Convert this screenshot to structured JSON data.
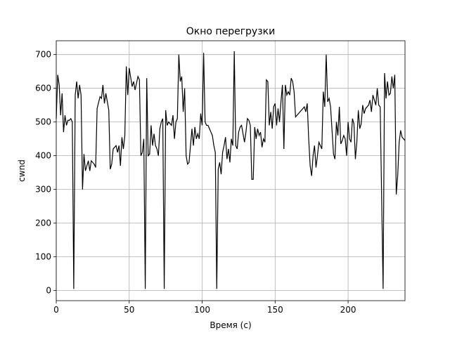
{
  "chart_data": {
    "type": "line",
    "title": "Окно перегрузки",
    "x_label": "Время (с)",
    "y_label": "cwnd",
    "x": [
      0,
      1,
      2,
      3,
      4,
      5,
      6,
      7,
      8,
      9,
      10,
      11,
      12,
      13,
      14,
      15,
      16,
      17,
      18,
      19,
      20,
      22,
      23,
      24,
      26,
      27,
      28,
      30,
      31,
      32,
      33,
      34,
      36,
      37,
      38,
      39,
      41,
      42,
      43,
      44,
      45,
      46,
      47,
      48,
      49,
      50,
      52,
      53,
      54,
      56,
      57,
      58,
      59,
      60,
      61,
      62,
      63,
      64,
      65,
      66,
      67,
      68,
      69,
      70,
      71,
      72,
      73,
      74,
      75,
      76,
      77,
      78,
      79,
      80,
      81,
      82,
      83,
      84,
      85,
      86,
      87,
      88,
      89,
      90,
      91,
      92,
      93,
      94,
      95,
      96,
      97,
      98,
      99,
      100,
      101,
      102,
      103,
      104,
      105,
      106,
      107,
      108,
      109,
      110,
      111,
      112,
      113,
      114,
      115,
      116,
      117,
      118,
      119,
      120,
      121,
      122,
      123,
      124,
      125,
      126,
      127,
      128,
      129,
      130,
      131,
      132,
      133,
      134,
      135,
      136,
      137,
      138,
      139,
      140,
      141,
      142,
      143,
      144,
      145,
      146,
      147,
      148,
      149,
      150,
      151,
      152,
      153,
      154,
      155,
      156,
      157,
      158,
      159,
      160,
      161,
      162,
      163,
      164,
      170,
      171,
      172,
      173,
      174,
      175,
      176,
      177,
      178,
      179,
      180,
      181,
      182,
      183,
      184,
      185,
      186,
      187,
      188,
      190,
      191,
      192,
      193,
      194,
      195,
      196,
      197,
      198,
      199,
      200,
      201,
      202,
      203,
      204,
      205,
      206,
      207,
      208,
      209,
      210,
      211,
      212,
      213,
      214,
      215,
      216,
      217,
      218,
      219,
      220,
      221,
      222,
      224,
      225,
      226,
      227,
      228,
      229,
      230,
      231,
      232,
      233,
      234,
      235,
      236,
      237,
      239
    ],
    "series": [
      {
        "name": "cwnd",
        "color": "#000000",
        "values": [
          510,
          640,
          610,
          520,
          585,
          470,
          520,
          490,
          505,
          505,
          510,
          500,
          5,
          580,
          620,
          570,
          610,
          580,
          300,
          405,
          355,
          385,
          355,
          385,
          375,
          365,
          540,
          575,
          570,
          610,
          555,
          585,
          535,
          360,
          375,
          420,
          430,
          410,
          430,
          370,
          455,
          420,
          460,
          665,
          580,
          660,
          605,
          620,
          595,
          635,
          625,
          400,
          410,
          450,
          5,
          630,
          400,
          405,
          490,
          430,
          465,
          430,
          420,
          400,
          480,
          500,
          510,
          5,
          535,
          490,
          500,
          495,
          490,
          520,
          450,
          500,
          510,
          700,
          620,
          635,
          530,
          600,
          400,
          375,
          380,
          430,
          480,
          430,
          485,
          450,
          465,
          450,
          525,
          490,
          705,
          500,
          490,
          490,
          480,
          470,
          460,
          430,
          410,
          5,
          360,
          380,
          345,
          410,
          430,
          455,
          390,
          420,
          380,
          450,
          430,
          710,
          430,
          420,
          470,
          485,
          490,
          465,
          440,
          470,
          510,
          505,
          490,
          330,
          330,
          485,
          450,
          480,
          460,
          470,
          425,
          450,
          440,
          625,
          620,
          490,
          530,
          480,
          545,
          555,
          490,
          540,
          500,
          560,
          610,
          420,
          610,
          580,
          590,
          580,
          630,
          620,
          590,
          515,
          545,
          530,
          555,
          450,
          370,
          340,
          400,
          430,
          365,
          400,
          440,
          430,
          420,
          590,
          545,
          700,
          560,
          570,
          545,
          405,
          390,
          500,
          460,
          545,
          435,
          445,
          460,
          450,
          400,
          500,
          450,
          440,
          510,
          495,
          390,
          440,
          535,
          480,
          495,
          550,
          525,
          540,
          545,
          550,
          565,
          530,
          580,
          565,
          550,
          600,
          550,
          545,
          5,
          645,
          570,
          620,
          580,
          585,
          635,
          600,
          640,
          285,
          340,
          440,
          475,
          455,
          445
        ]
      }
    ],
    "xlim": [
      0,
      239
    ],
    "ylim": [
      -30,
      741
    ],
    "xticks": [
      0,
      50,
      100,
      150,
      200
    ],
    "yticks": [
      0,
      100,
      200,
      300,
      400,
      500,
      600,
      700
    ],
    "grid": true
  }
}
